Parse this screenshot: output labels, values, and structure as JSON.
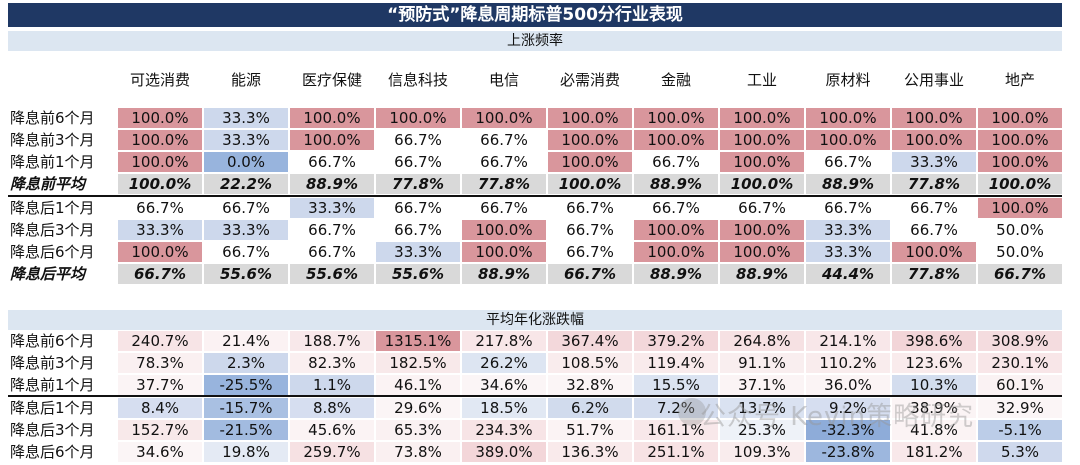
{
  "title": "“预防式”降息周期标普500分行业表现",
  "section1_label": "上涨频率",
  "section2_label": "平均年化涨跌幅",
  "columns": [
    "可选消费",
    "能源",
    "医疗保健",
    "信息科技",
    "电信",
    "必需消费",
    "金融",
    "工业",
    "原材料",
    "公用事业",
    "地产"
  ],
  "section1_rows": [
    {
      "label": "降息前6个月",
      "bold": false,
      "values": [
        "100.0%",
        "33.3%",
        "100.0%",
        "100.0%",
        "100.0%",
        "100.0%",
        "100.0%",
        "100.0%",
        "100.0%",
        "100.0%",
        "100.0%"
      ],
      "bg": [
        "#d9969c",
        "#cdd8ec",
        "#d9969c",
        "#d9969c",
        "#d9969c",
        "#d9969c",
        "#d9969c",
        "#d9969c",
        "#d9969c",
        "#d9969c",
        "#d9969c"
      ]
    },
    {
      "label": "降息前3个月",
      "bold": false,
      "values": [
        "100.0%",
        "33.3%",
        "100.0%",
        "66.7%",
        "66.7%",
        "100.0%",
        "100.0%",
        "100.0%",
        "100.0%",
        "100.0%",
        "100.0%"
      ],
      "bg": [
        "#d9969c",
        "#cdd8ec",
        "#d9969c",
        "#ffffff",
        "#ffffff",
        "#d9969c",
        "#d9969c",
        "#d9969c",
        "#d9969c",
        "#d9969c",
        "#d9969c"
      ]
    },
    {
      "label": "降息前1个月",
      "bold": false,
      "values": [
        "100.0%",
        "0.0%",
        "66.7%",
        "66.7%",
        "66.7%",
        "100.0%",
        "66.7%",
        "100.0%",
        "66.7%",
        "33.3%",
        "100.0%"
      ],
      "bg": [
        "#d9969c",
        "#98b4dd",
        "#ffffff",
        "#ffffff",
        "#ffffff",
        "#d9969c",
        "#ffffff",
        "#d9969c",
        "#ffffff",
        "#cdd8ec",
        "#d9969c"
      ]
    },
    {
      "label": "降息前平均",
      "bold": true,
      "values": [
        "100.0%",
        "22.2%",
        "88.9%",
        "77.8%",
        "77.8%",
        "100.0%",
        "88.9%",
        "100.0%",
        "88.9%",
        "77.8%",
        "100.0%"
      ],
      "bg": [
        "#d9d9d9",
        "#d9d9d9",
        "#d9d9d9",
        "#d9d9d9",
        "#d9d9d9",
        "#d9d9d9",
        "#d9d9d9",
        "#d9d9d9",
        "#d9d9d9",
        "#d9d9d9",
        "#d9d9d9"
      ]
    },
    {
      "label": "降息后1个月",
      "bold": false,
      "values": [
        "66.7%",
        "66.7%",
        "33.3%",
        "66.7%",
        "66.7%",
        "66.7%",
        "66.7%",
        "66.7%",
        "66.7%",
        "66.7%",
        "100.0%"
      ],
      "bg": [
        "#ffffff",
        "#ffffff",
        "#cdd8ec",
        "#ffffff",
        "#ffffff",
        "#ffffff",
        "#ffffff",
        "#ffffff",
        "#ffffff",
        "#ffffff",
        "#d9969c"
      ]
    },
    {
      "label": "降息后3个月",
      "bold": false,
      "values": [
        "33.3%",
        "33.3%",
        "66.7%",
        "66.7%",
        "100.0%",
        "66.7%",
        "100.0%",
        "100.0%",
        "33.3%",
        "66.7%",
        "50.0%"
      ],
      "bg": [
        "#cdd8ec",
        "#cdd8ec",
        "#ffffff",
        "#ffffff",
        "#d9969c",
        "#ffffff",
        "#d9969c",
        "#d9969c",
        "#cdd8ec",
        "#ffffff",
        "#ffffff"
      ]
    },
    {
      "label": "降息后6个月",
      "bold": false,
      "values": [
        "100.0%",
        "66.7%",
        "66.7%",
        "33.3%",
        "100.0%",
        "66.7%",
        "100.0%",
        "100.0%",
        "33.3%",
        "100.0%",
        "50.0%"
      ],
      "bg": [
        "#d9969c",
        "#ffffff",
        "#ffffff",
        "#cdd8ec",
        "#d9969c",
        "#ffffff",
        "#d9969c",
        "#d9969c",
        "#cdd8ec",
        "#d9969c",
        "#ffffff"
      ]
    },
    {
      "label": "降息后平均",
      "bold": true,
      "values": [
        "66.7%",
        "55.6%",
        "55.6%",
        "55.6%",
        "88.9%",
        "66.7%",
        "88.9%",
        "88.9%",
        "44.4%",
        "77.8%",
        "66.7%"
      ],
      "bg": [
        "#d9d9d9",
        "#d9d9d9",
        "#d9d9d9",
        "#d9d9d9",
        "#d9d9d9",
        "#d9d9d9",
        "#d9d9d9",
        "#d9d9d9",
        "#d9d9d9",
        "#d9d9d9",
        "#d9d9d9"
      ]
    }
  ],
  "section2_rows": [
    {
      "label": "降息前6个月",
      "bold": false,
      "values": [
        "240.7%",
        "21.4%",
        "188.7%",
        "1315.1%",
        "217.8%",
        "367.4%",
        "379.2%",
        "264.8%",
        "214.1%",
        "398.6%",
        "308.9%"
      ],
      "bg": [
        "#f7e4e6",
        "#fbf2f3",
        "#f8e8ea",
        "#d9969c",
        "#f8e6e8",
        "#f3d8db",
        "#f3d7da",
        "#f6e1e3",
        "#f8e7e9",
        "#f2d5d8",
        "#f4dcdf"
      ]
    },
    {
      "label": "降息前3个月",
      "bold": false,
      "values": [
        "78.3%",
        "2.3%",
        "82.3%",
        "182.5%",
        "26.2%",
        "108.5%",
        "119.4%",
        "91.1%",
        "110.2%",
        "123.6%",
        "230.1%"
      ],
      "bg": [
        "#faf0f1",
        "#cdd8ec",
        "#faeff0",
        "#f8e9ea",
        "#dde5f2",
        "#f9eced",
        "#f9ebec",
        "#f9eeef",
        "#f9eced",
        "#f9ebec",
        "#f8e6e8"
      ]
    },
    {
      "label": "降息前1个月",
      "bold": false,
      "values": [
        "37.7%",
        "-25.5%",
        "1.1%",
        "46.1%",
        "34.6%",
        "32.8%",
        "15.5%",
        "37.1%",
        "36.0%",
        "10.3%",
        "60.1%"
      ],
      "bg": [
        "#fbf4f5",
        "#98b4dd",
        "#cdd8ec",
        "#fbf3f4",
        "#fbf5f6",
        "#fbf5f6",
        "#dbe3f1",
        "#fbf4f5",
        "#fbf4f5",
        "#d3ddee",
        "#faf2f3"
      ]
    },
    {
      "label": "降息后1个月",
      "bold": false,
      "values": [
        "8.4%",
        "-15.7%",
        "8.8%",
        "29.6%",
        "18.5%",
        "6.2%",
        "7.2%",
        "13.7%",
        "9.2%",
        "38.9%",
        "32.9%"
      ],
      "bg": [
        "#d6def0",
        "#a9c0e2",
        "#d6def0",
        "#fbf5f6",
        "#e1e8f3",
        "#d1dbed",
        "#d3dcee",
        "#dae2f1",
        "#d6def0",
        "#fbf4f5",
        "#fbf5f6"
      ]
    },
    {
      "label": "降息后3个月",
      "bold": false,
      "values": [
        "152.7%",
        "-21.5%",
        "45.6%",
        "65.3%",
        "234.3%",
        "51.7%",
        "161.1%",
        "25.3%",
        "-32.3%",
        "41.8%",
        "-5.1%"
      ],
      "bg": [
        "#f8e9ea",
        "#a2bbe0",
        "#fbf3f4",
        "#faf1f2",
        "#f7e4e6",
        "#fbf3f4",
        "#f8e8ea",
        "#eef2f8",
        "#8eacd9",
        "#fbf3f4",
        "#bccde8"
      ]
    },
    {
      "label": "降息后6个月",
      "bold": false,
      "values": [
        "34.6%",
        "19.8%",
        "259.7%",
        "73.8%",
        "389.0%",
        "136.3%",
        "251.1%",
        "109.3%",
        "-23.8%",
        "181.2%",
        "5.3%"
      ],
      "bg": [
        "#fbf5f6",
        "#e4eaf4",
        "#f6e1e3",
        "#faf0f1",
        "#f3d6d9",
        "#f9eaeb",
        "#f7e2e4",
        "#f9eced",
        "#9db7de",
        "#f8e8ea",
        "#cfd9ed"
      ]
    }
  ],
  "watermark": "公众号 Kevin策略研究"
}
